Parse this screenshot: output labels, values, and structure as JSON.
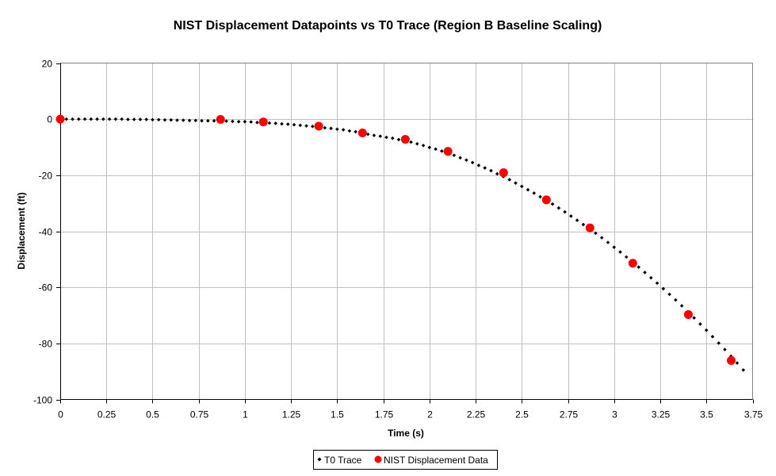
{
  "chart_data": {
    "type": "scatter",
    "title": "NIST Displacement Datapoints vs T0 Trace (Region B Baseline Scaling)",
    "xlabel": "Time (s)",
    "ylabel": "Displacement (ft)",
    "xlim": [
      0,
      3.75
    ],
    "ylim": [
      -100,
      20
    ],
    "xticks": [
      0,
      0.25,
      0.5,
      0.75,
      1,
      1.25,
      1.5,
      1.75,
      2,
      2.25,
      2.5,
      2.75,
      3,
      3.25,
      3.5,
      3.75
    ],
    "xtick_labels": [
      "0",
      "0.25",
      "0.5",
      "0.75",
      "1",
      "1.25",
      "1.5",
      "1.75",
      "2",
      "2.25",
      "2.5",
      "2.75",
      "3",
      "3.25",
      "3.5",
      "3.75"
    ],
    "yticks": [
      20,
      0,
      -20,
      -40,
      -60,
      -80,
      -100
    ],
    "ytick_labels": [
      "20",
      "0",
      "-20",
      "-40",
      "-60",
      "-80",
      "-100"
    ],
    "grid": true,
    "legend_position": "bottom-center",
    "series": [
      {
        "name": "T0 Trace",
        "color": "#000000",
        "marker": "small-diamond",
        "x_step": 0.03333,
        "x_start": 0,
        "values": [
          0,
          0,
          0,
          0,
          0,
          0,
          0,
          0,
          0,
          0,
          0,
          -0.1,
          -0.1,
          -0.1,
          -0.1,
          -0.2,
          -0.2,
          -0.3,
          -0.3,
          -0.4,
          -0.4,
          -0.5,
          -0.5,
          -0.6,
          -0.6,
          -0.6,
          -0.6,
          -0.7,
          -0.8,
          -0.9,
          -0.9,
          -1.0,
          -1.2,
          -1.3,
          -1.4,
          -1.5,
          -1.7,
          -1.8,
          -2.0,
          -2.2,
          -2.4,
          -2.6,
          -2.8,
          -3.1,
          -3.3,
          -3.6,
          -3.8,
          -4.2,
          -4.5,
          -4.9,
          -5.4,
          -5.8,
          -6.1,
          -6.5,
          -6.8,
          -7.3,
          -7.7,
          -8.2,
          -8.8,
          -9.4,
          -10.1,
          -10.7,
          -11.4,
          -12.1,
          -12.9,
          -13.8,
          -14.6,
          -15.5,
          -16.5,
          -17.4,
          -18.4,
          -19.5,
          -20.5,
          -21.6,
          -22.8,
          -24.0,
          -25.2,
          -26.4,
          -27.7,
          -29.0,
          -30.3,
          -31.7,
          -33.1,
          -34.6,
          -36.1,
          -37.6,
          -39.1,
          -40.7,
          -42.3,
          -44.0,
          -45.7,
          -47.4,
          -49.2,
          -51.0,
          -52.8,
          -54.7,
          -56.6,
          -58.5,
          -60.5,
          -62.5,
          -64.5,
          -66.6,
          -68.7,
          -70.9,
          -73.1,
          -75.3,
          -77.6,
          -79.9,
          -82.2,
          -84.6,
          -87.0,
          -89.5
        ]
      },
      {
        "name": "NIST Displacement Data",
        "color": "#ff0000",
        "marker": "circle",
        "x": [
          0,
          0.868,
          1.1,
          1.4,
          1.637,
          1.869,
          2.1,
          2.401,
          2.633,
          2.869,
          3.101,
          3.402,
          3.634
        ],
        "y": [
          0,
          -0.1,
          -1.0,
          -2.5,
          -4.9,
          -7.2,
          -11.5,
          -19.1,
          -28.8,
          -38.8,
          -51.4,
          -69.7,
          -86.1
        ]
      }
    ]
  }
}
